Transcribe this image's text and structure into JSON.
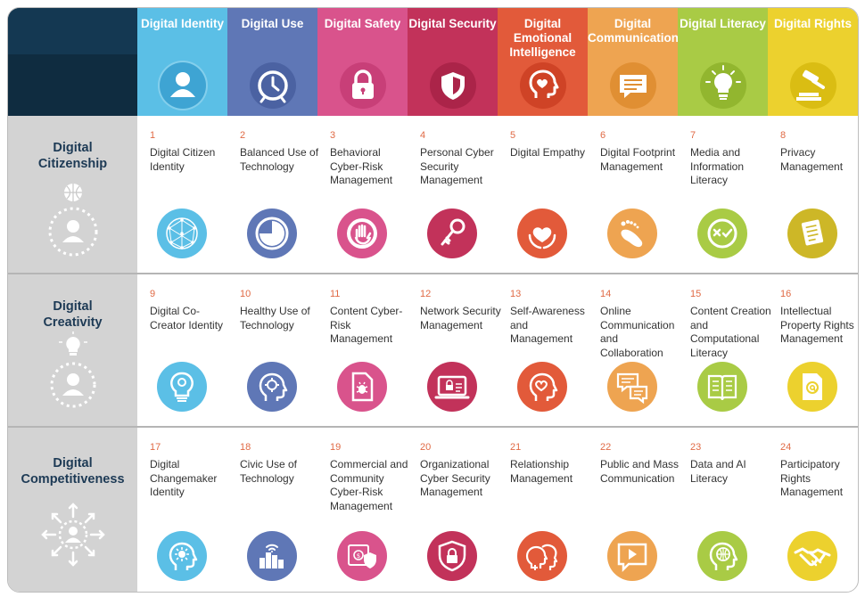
{
  "columns": [
    {
      "title": "Digital Identity",
      "color": "#5bbfe6",
      "icon": "person-icon"
    },
    {
      "title": "Digital Use",
      "color": "#5f77b6",
      "icon": "clock-icon"
    },
    {
      "title": "Digital Safety",
      "color": "#d9538c",
      "icon": "padlock-icon"
    },
    {
      "title": "Digital Security",
      "color": "#c2325a",
      "icon": "shield-icon"
    },
    {
      "title": "Digital Emotional Intelligence",
      "color": "#e25a3a",
      "icon": "head-heart-icon"
    },
    {
      "title": "Digital Communication",
      "color": "#eea451",
      "icon": "chat-bubble-icon"
    },
    {
      "title": "Digital Literacy",
      "color": "#a9cb45",
      "icon": "lightbulb-icon"
    },
    {
      "title": "Digital Rights",
      "color": "#ecd12e",
      "icon": "gavel-icon"
    }
  ],
  "rows": [
    {
      "title": "Digital Citizenship",
      "icon": "globe-person-icon",
      "cells": [
        {
          "num": "1",
          "label": "Digital Citizen Identity",
          "icon": "network-globe-icon"
        },
        {
          "num": "2",
          "label": "Balanced Use of Technology",
          "icon": "pie-clock-icon"
        },
        {
          "num": "3",
          "label": "Behavioral Cyber-Risk Management",
          "icon": "stop-hand-icon"
        },
        {
          "num": "4",
          "label": "Personal Cyber Security Management",
          "icon": "key-icon"
        },
        {
          "num": "5",
          "label": "Digital Empathy",
          "icon": "heart-hands-icon"
        },
        {
          "num": "6",
          "label": "Digital Footprint Management",
          "icon": "footprint-icon"
        },
        {
          "num": "7",
          "label": "Media and Information Literacy",
          "icon": "check-cross-icon"
        },
        {
          "num": "8",
          "label": "Privacy Management",
          "icon": "document-icon"
        }
      ]
    },
    {
      "title": "Digital Creativity",
      "icon": "bulb-person-icon",
      "cells": [
        {
          "num": "9",
          "label": "Digital Co-Creator Identity",
          "icon": "creative-bulb-icon"
        },
        {
          "num": "10",
          "label": "Healthy Use of Technology",
          "icon": "head-gear-icon"
        },
        {
          "num": "11",
          "label": "Content Cyber-Risk Management",
          "icon": "bug-file-icon"
        },
        {
          "num": "12",
          "label": "Network Security Management",
          "icon": "secure-screen-icon"
        },
        {
          "num": "13",
          "label": "Self-Awareness and Management",
          "icon": "head-heart-outline-icon"
        },
        {
          "num": "14",
          "label": "Online Communication and Collaboration",
          "icon": "chat-bubbles-icon"
        },
        {
          "num": "15",
          "label": "Content Creation and Computational Literacy",
          "icon": "open-book-icon"
        },
        {
          "num": "16",
          "label": "Intellectual Property Rights Management",
          "icon": "at-document-icon"
        }
      ]
    },
    {
      "title": "Digital Competitiveness",
      "icon": "arrows-person-icon",
      "cells": [
        {
          "num": "17",
          "label": "Digital Changemaker Identity",
          "icon": "head-sun-icon"
        },
        {
          "num": "18",
          "label": "Civic Use of Technology",
          "icon": "city-wifi-icon"
        },
        {
          "num": "19",
          "label": "Commercial and Community Cyber-Risk Management",
          "icon": "shield-money-icon"
        },
        {
          "num": "20",
          "label": "Organizational Cyber Security Management",
          "icon": "shield-lock-icon"
        },
        {
          "num": "21",
          "label": "Relationship Management",
          "icon": "two-heads-icon"
        },
        {
          "num": "22",
          "label": "Public and Mass Communication",
          "icon": "video-message-icon"
        },
        {
          "num": "23",
          "label": "Data and AI Literacy",
          "icon": "head-globe-icon"
        },
        {
          "num": "24",
          "label": "Participatory Rights Management",
          "icon": "handshake-icon"
        }
      ]
    }
  ]
}
